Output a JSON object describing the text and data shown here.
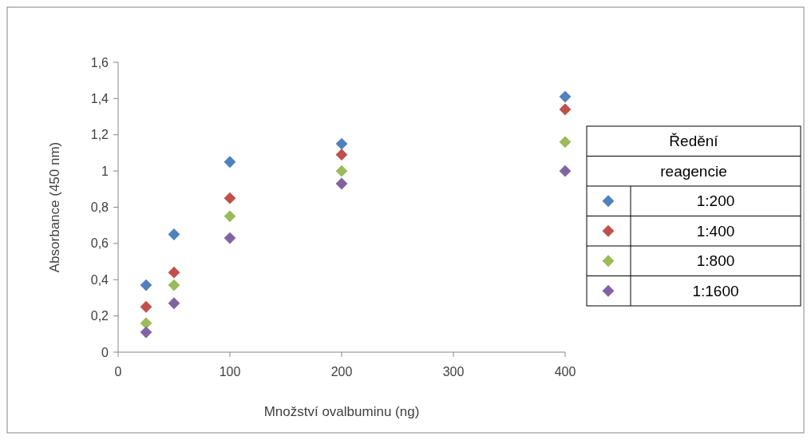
{
  "chart_data": {
    "type": "scatter",
    "xlabel": "Množství ovalbuminu  (ng)",
    "ylabel": "Absorbance (450 nm)",
    "legend_title": "Ředění reagencie",
    "x": [
      25,
      50,
      100,
      200,
      400
    ],
    "series": [
      {
        "name": "1:200",
        "color": "#4f81bd",
        "values": [
          0.37,
          0.65,
          1.05,
          1.15,
          1.41
        ]
      },
      {
        "name": "1:400",
        "color": "#c0504d",
        "values": [
          0.25,
          0.44,
          0.85,
          1.09,
          1.34
        ]
      },
      {
        "name": "1:800",
        "color": "#9bbb59",
        "values": [
          0.16,
          0.37,
          0.75,
          1.0,
          1.16
        ]
      },
      {
        "name": "1:1600",
        "color": "#8064a2",
        "values": [
          0.11,
          0.27,
          0.63,
          0.93,
          1.0
        ]
      }
    ],
    "xlim": [
      0,
      400
    ],
    "xticks": [
      0,
      100,
      200,
      300,
      400
    ],
    "ylim": [
      0,
      1.6
    ],
    "yticks": [
      0,
      {
        "value": 0.2,
        "label": "0,2"
      },
      {
        "value": 0.4,
        "label": "0,4"
      },
      {
        "value": 0.6,
        "label": "0,6"
      },
      {
        "value": 0.8,
        "label": "0,8"
      },
      1,
      {
        "value": 1.2,
        "label": "1,2"
      },
      {
        "value": 1.4,
        "label": "1,4"
      },
      {
        "value": 1.6,
        "label": "1,6"
      }
    ],
    "marker": "diamond",
    "grid": false,
    "legend": "right"
  }
}
